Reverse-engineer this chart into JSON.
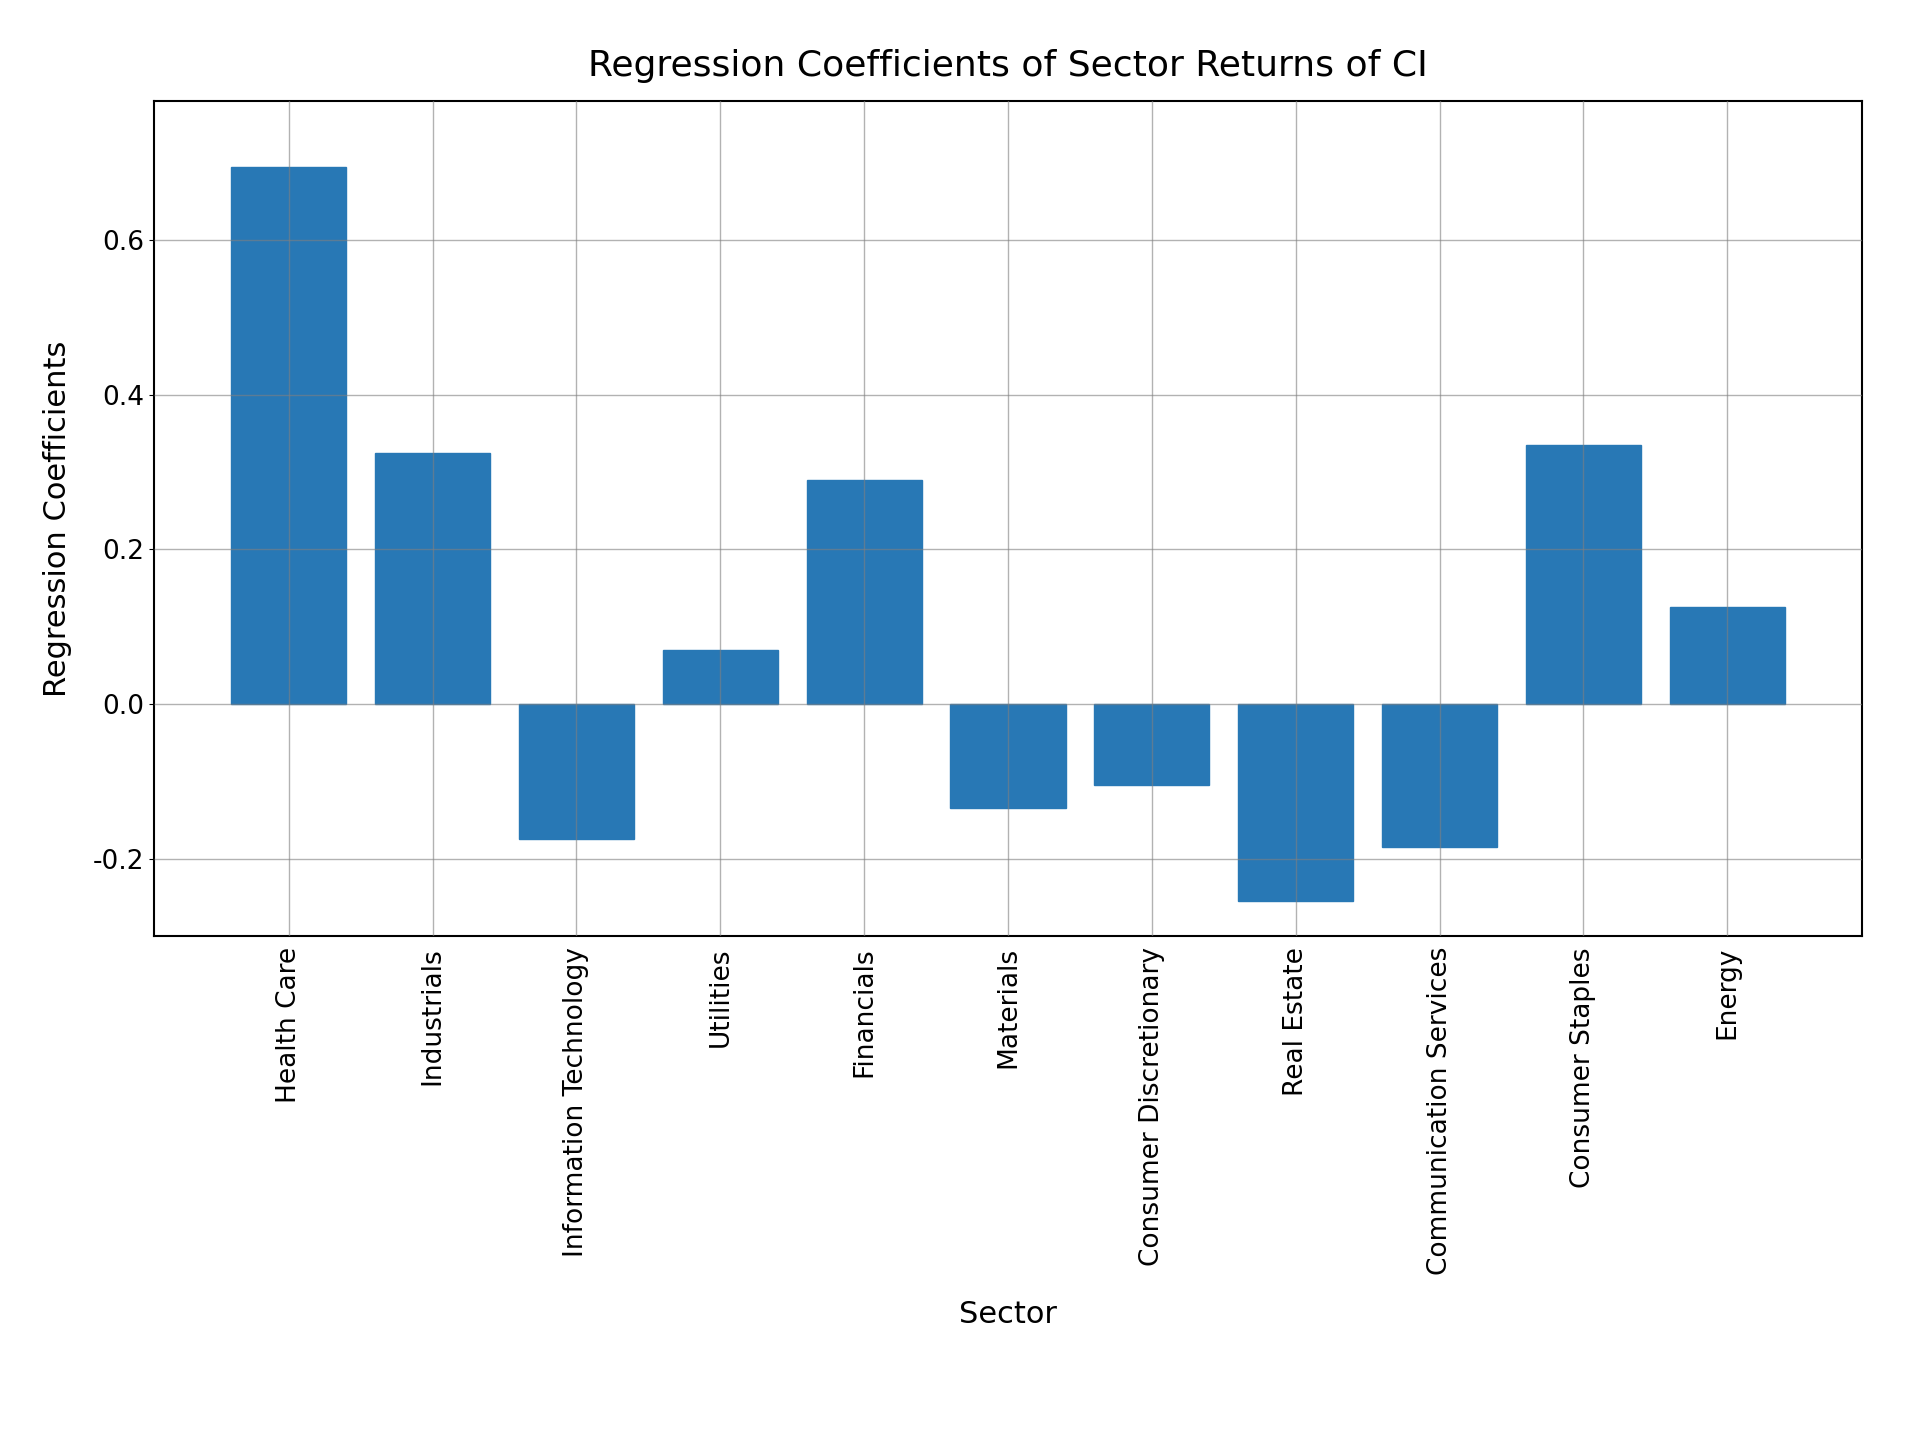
{
  "categories": [
    "Health Care",
    "Industrials",
    "Information Technology",
    "Utilities",
    "Financials",
    "Materials",
    "Consumer Discretionary",
    "Real Estate",
    "Communication Services",
    "Consumer Staples",
    "Energy"
  ],
  "values": [
    0.695,
    0.325,
    -0.175,
    0.07,
    0.29,
    -0.135,
    -0.105,
    -0.255,
    -0.185,
    0.335,
    0.125
  ],
  "bar_color": "#2878b5",
  "title": "Regression Coefficients of Sector Returns of CI",
  "xlabel": "Sector",
  "ylabel": "Regression Coefficients",
  "ylim": [
    -0.3,
    0.78
  ],
  "title_fontsize": 26,
  "label_fontsize": 22,
  "tick_fontsize": 19,
  "background_color": "#ffffff",
  "grid": true,
  "bar_width": 0.8
}
